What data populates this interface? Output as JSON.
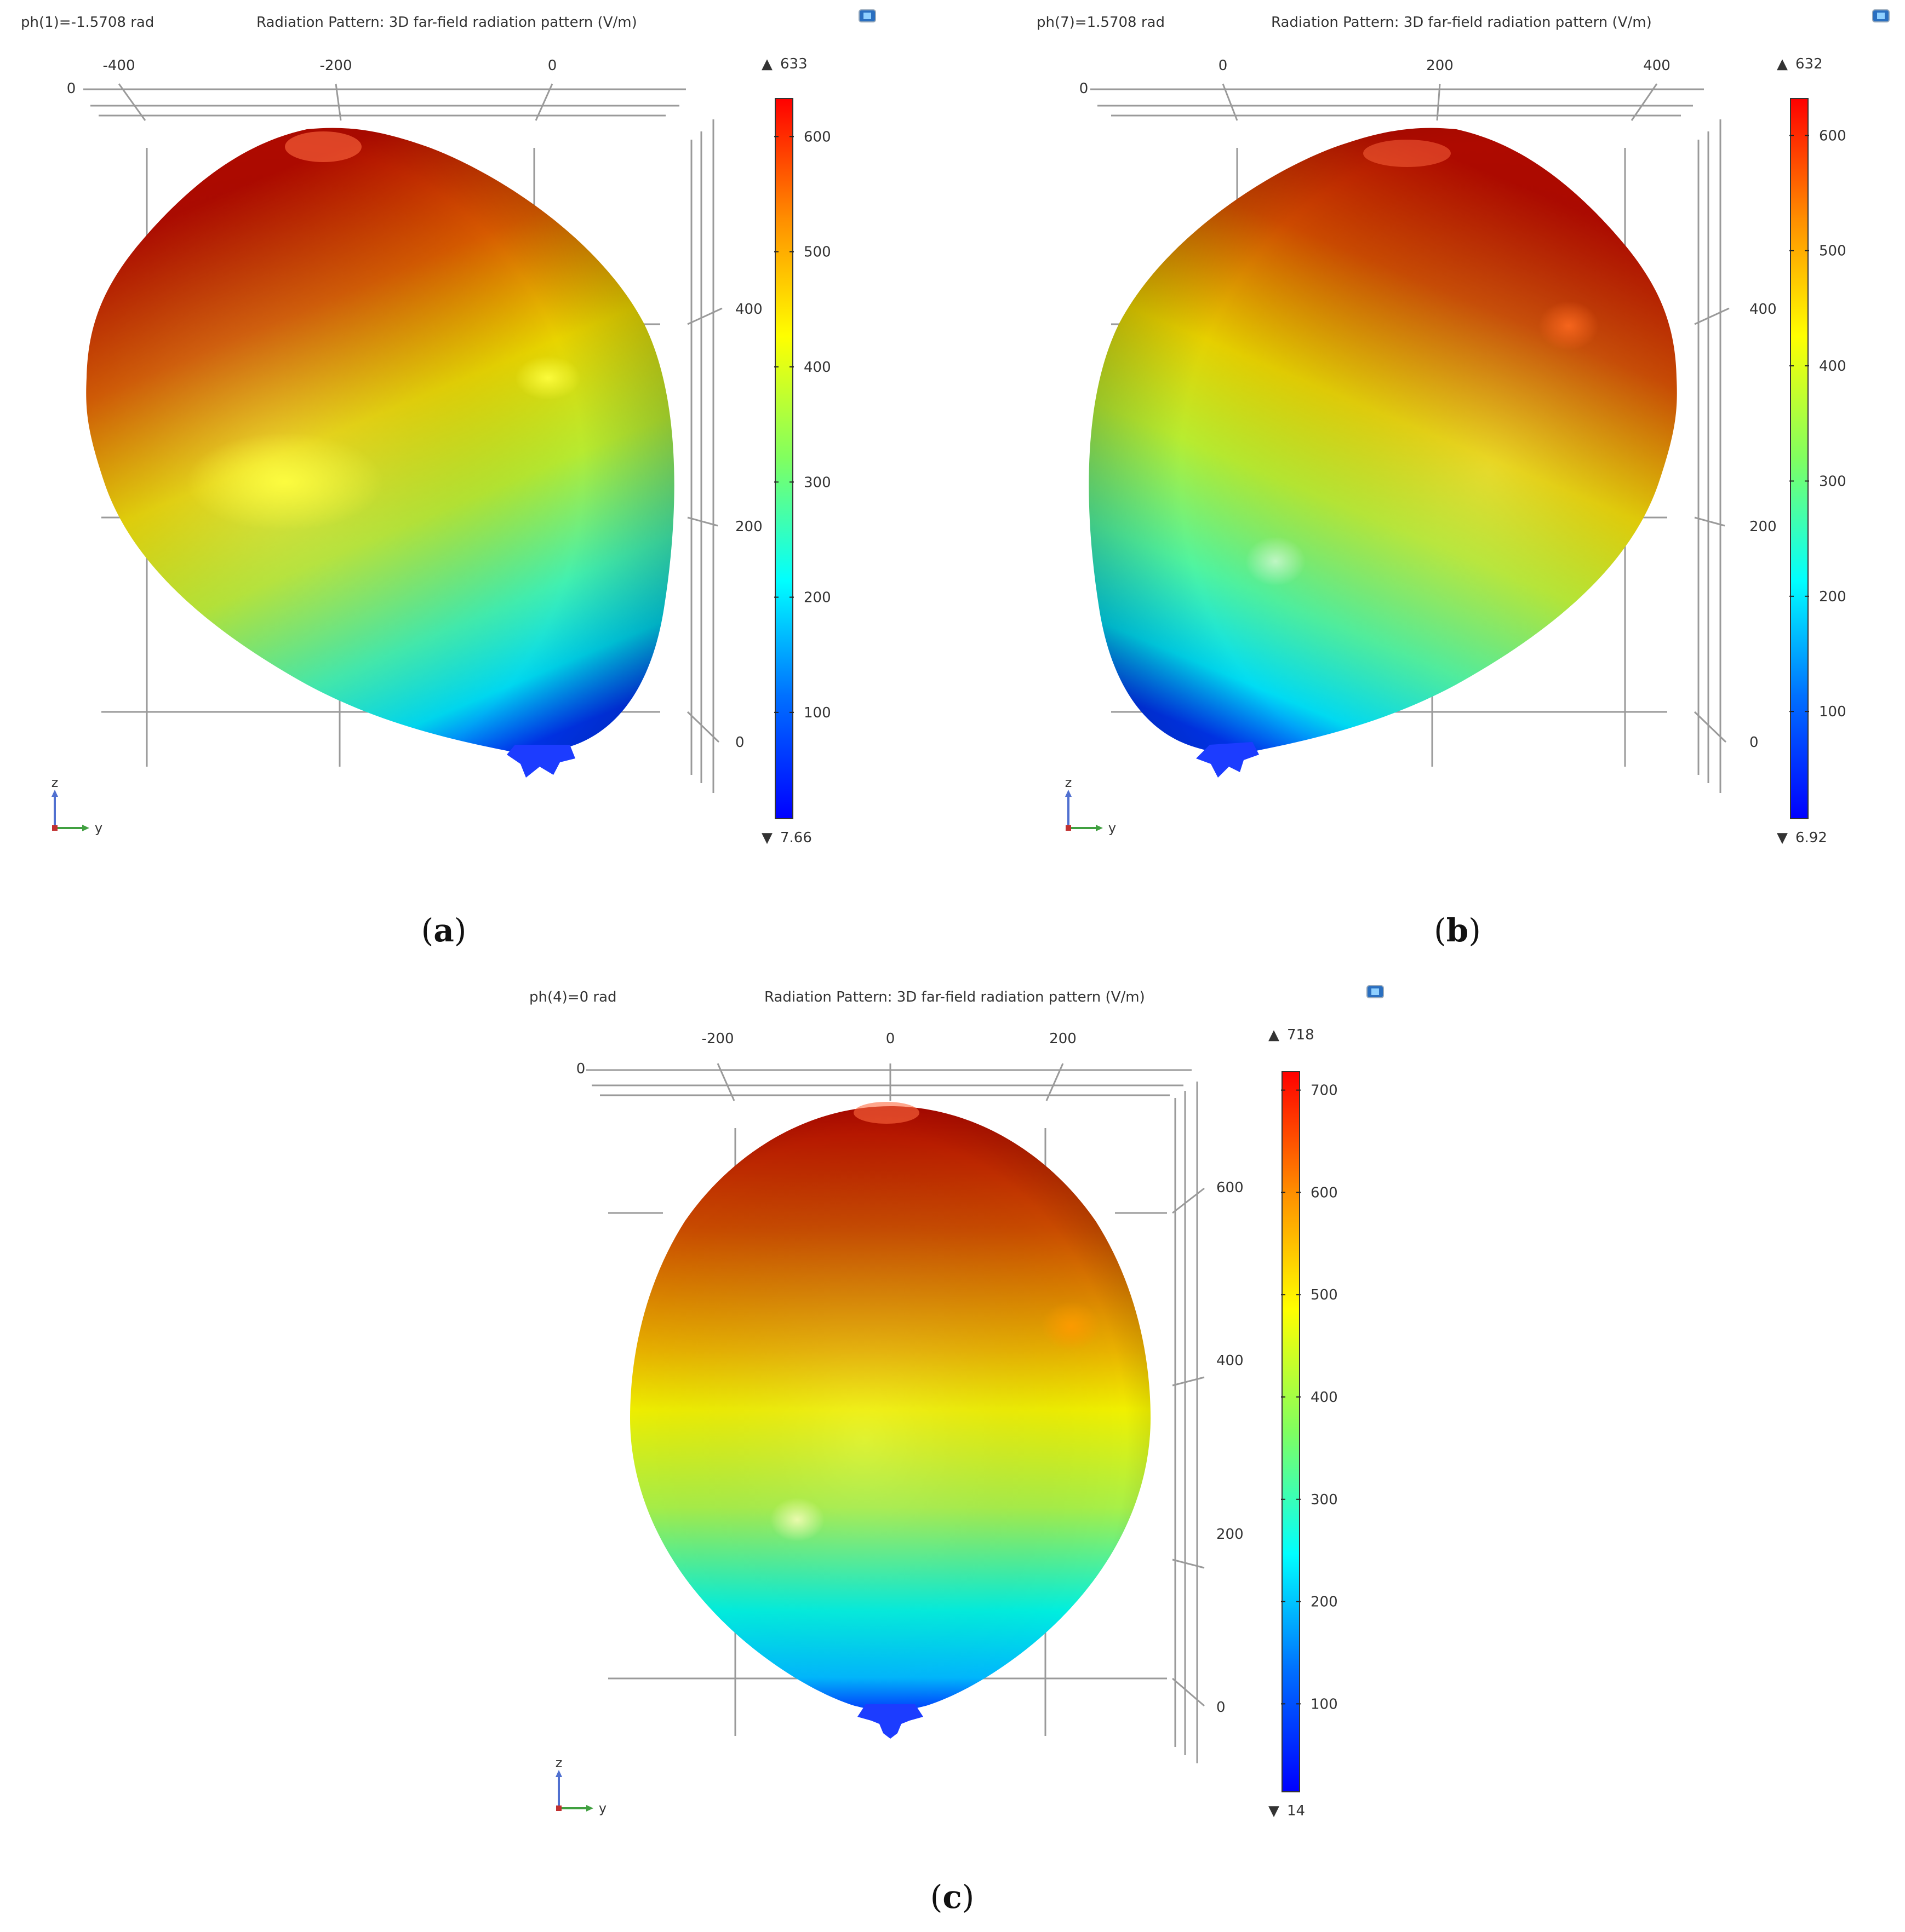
{
  "figure": {
    "panels": [
      {
        "label": "a",
        "parameter_text": "ph(1)=-1.5708 rad",
        "title": "Radiation Pattern: 3D far-field radiation pattern (V/m)",
        "view_orientation": "tilted, main lobe leaning left",
        "h_ticks": [
          "-400",
          "-200",
          "0"
        ],
        "h_axis_zero": "0",
        "v_ticks": [
          "400",
          "200",
          "0"
        ],
        "colorbar": {
          "max_label": "633",
          "min_label": "7.66",
          "max": 633,
          "min": 7.66,
          "ticks": [
            100,
            200,
            300,
            400,
            500,
            600
          ]
        }
      },
      {
        "label": "b",
        "parameter_text": "ph(7)=1.5708 rad",
        "title": "Radiation Pattern: 3D far-field radiation pattern (V/m)",
        "view_orientation": "tilted, main lobe leaning right",
        "h_ticks": [
          "0",
          "200",
          "400"
        ],
        "h_axis_zero": "0",
        "v_ticks": [
          "400",
          "200",
          "0"
        ],
        "colorbar": {
          "max_label": "632",
          "min_label": "6.92",
          "max": 632,
          "min": 6.92,
          "ticks": [
            100,
            200,
            300,
            400,
            500,
            600
          ]
        }
      },
      {
        "label": "c",
        "parameter_text": "ph(4)=0 rad",
        "title": "Radiation Pattern: 3D far-field radiation pattern (V/m)",
        "view_orientation": "symmetric, main lobe upright",
        "h_ticks": [
          "-200",
          "0",
          "200"
        ],
        "h_axis_zero": "0",
        "v_ticks": [
          "600",
          "400",
          "200",
          "0"
        ],
        "colorbar": {
          "max_label": "718",
          "min_label": "14",
          "max": 718,
          "min": 14,
          "ticks": [
            100,
            200,
            300,
            400,
            500,
            600,
            700
          ]
        }
      }
    ],
    "triad": {
      "z": "z",
      "y": "y"
    },
    "max_marker": "▲",
    "min_marker": "▼",
    "colormap": [
      "#0000ff",
      "#00a0ff",
      "#00ffff",
      "#80ff60",
      "#ffff00",
      "#ff9000",
      "#ff0000"
    ],
    "camera_icon": "camera-icon"
  },
  "chart_data": [
    {
      "type": "heatmap",
      "subtype": "3D far-field surface",
      "panel": "a",
      "title": "Radiation Pattern: 3D far-field radiation pattern (V/m)",
      "parameter": "ph(1)=-1.5708 rad",
      "color_range": [
        7.66,
        633
      ]
    },
    {
      "type": "heatmap",
      "subtype": "3D far-field surface",
      "panel": "b",
      "title": "Radiation Pattern: 3D far-field radiation pattern (V/m)",
      "parameter": "ph(7)=1.5708 rad",
      "color_range": [
        6.92,
        632
      ]
    },
    {
      "type": "heatmap",
      "subtype": "3D far-field surface",
      "panel": "c",
      "title": "Radiation Pattern: 3D far-field radiation pattern (V/m)",
      "parameter": "ph(4)=0 rad",
      "color_range": [
        14,
        718
      ]
    }
  ]
}
